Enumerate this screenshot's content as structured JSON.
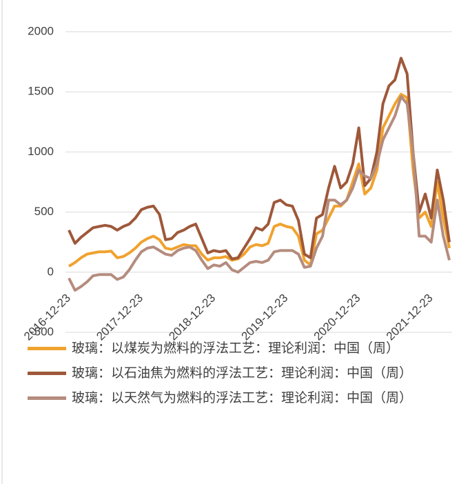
{
  "chart_data": {
    "type": "line",
    "categories": [
      "2016-12-23",
      null,
      null,
      null,
      null,
      null,
      null,
      null,
      null,
      null,
      null,
      null,
      "2017-12-23",
      null,
      null,
      null,
      null,
      null,
      null,
      null,
      null,
      null,
      null,
      null,
      "2018-12-23",
      null,
      null,
      null,
      null,
      null,
      null,
      null,
      null,
      null,
      null,
      null,
      "2019-12-23",
      null,
      null,
      null,
      null,
      null,
      null,
      null,
      null,
      null,
      null,
      null,
      "2020-12-23",
      null,
      null,
      null,
      null,
      null,
      null,
      null,
      null,
      null,
      null,
      null,
      "2021-12-23",
      null,
      null,
      null
    ],
    "series": [
      {
        "name": "玻璃：以煤炭为燃料的浮法工艺：理论利润：中国（周）",
        "color": "#f0a22e",
        "values": [
          50,
          80,
          120,
          150,
          160,
          170,
          170,
          175,
          120,
          130,
          160,
          200,
          250,
          280,
          300,
          270,
          200,
          190,
          210,
          230,
          220,
          220,
          150,
          100,
          120,
          120,
          130,
          100,
          110,
          150,
          210,
          230,
          220,
          240,
          380,
          400,
          380,
          370,
          300,
          100,
          60,
          320,
          350,
          450,
          550,
          550,
          600,
          750,
          900,
          650,
          700,
          850,
          1200,
          1300,
          1400,
          1480,
          1450,
          850,
          450,
          500,
          380,
          750,
          450,
          200
        ]
      },
      {
        "name": "玻璃：以石油焦为燃料的浮法工艺：理论利润：中国（周）",
        "color": "#9e583a",
        "values": [
          350,
          240,
          290,
          330,
          370,
          380,
          390,
          380,
          350,
          380,
          400,
          450,
          520,
          540,
          550,
          480,
          270,
          280,
          330,
          350,
          380,
          400,
          280,
          160,
          180,
          170,
          180,
          110,
          120,
          200,
          280,
          370,
          350,
          400,
          580,
          600,
          560,
          550,
          430,
          150,
          120,
          450,
          480,
          700,
          880,
          700,
          750,
          900,
          1200,
          720,
          780,
          1000,
          1400,
          1550,
          1600,
          1780,
          1650,
          1000,
          500,
          650,
          450,
          850,
          600,
          250
        ]
      },
      {
        "name": "玻璃：以天然气为燃料的浮法工艺：理论利润：中国（周）",
        "color": "#b58c7e",
        "values": [
          -50,
          -150,
          -120,
          -80,
          -30,
          -20,
          -20,
          -20,
          -60,
          -40,
          20,
          100,
          170,
          200,
          210,
          180,
          150,
          140,
          180,
          200,
          210,
          180,
          100,
          30,
          60,
          50,
          80,
          20,
          0,
          40,
          80,
          90,
          80,
          100,
          170,
          180,
          180,
          180,
          150,
          40,
          50,
          200,
          300,
          600,
          600,
          560,
          600,
          700,
          850,
          800,
          780,
          900,
          1100,
          1200,
          1300,
          1460,
          1400,
          1000,
          300,
          300,
          250,
          600,
          300,
          100
        ]
      }
    ],
    "ylim": [
      -500,
      2000
    ],
    "yticks": [
      2000,
      1500,
      1000,
      500,
      0,
      -500
    ],
    "grid": true
  }
}
